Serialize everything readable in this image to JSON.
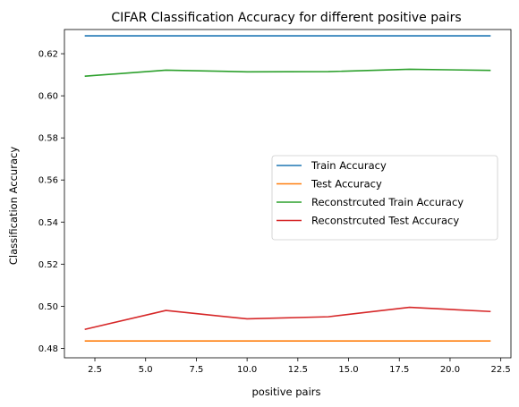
{
  "chart_data": {
    "type": "line",
    "title": "CIFAR Classification Accuracy for different positive pairs",
    "xlabel": "positive pairs",
    "ylabel": "Classification Accuracy",
    "xlim": [
      1.0,
      23.0
    ],
    "ylim": [
      0.4755,
      0.6315
    ],
    "xticks": [
      2.5,
      5.0,
      7.5,
      10.0,
      12.5,
      15.0,
      17.5,
      20.0,
      22.5
    ],
    "xtick_labels": [
      "2.5",
      "5.0",
      "7.5",
      "10.0",
      "12.5",
      "15.0",
      "17.5",
      "20.0",
      "22.5"
    ],
    "yticks": [
      0.48,
      0.5,
      0.52,
      0.54,
      0.56,
      0.58,
      0.6,
      0.62
    ],
    "ytick_labels": [
      "0.48",
      "0.50",
      "0.52",
      "0.54",
      "0.56",
      "0.58",
      "0.60",
      "0.62"
    ],
    "grid": false,
    "legend_position": "center-right",
    "x": [
      2,
      6,
      10,
      14,
      18,
      22
    ],
    "series": [
      {
        "name": "Train Accuracy",
        "color": "#1f77b4",
        "values": [
          0.6285,
          0.6285,
          0.6285,
          0.6285,
          0.6285,
          0.6285
        ]
      },
      {
        "name": "Test Accuracy",
        "color": "#ff7f0e",
        "values": [
          0.4835,
          0.4835,
          0.4835,
          0.4835,
          0.4835,
          0.4835
        ]
      },
      {
        "name": "Reconstrcuted Train Accuracy",
        "color": "#2ca02c",
        "values": [
          0.6093,
          0.6122,
          0.6114,
          0.6115,
          0.6126,
          0.6121
        ]
      },
      {
        "name": "Reconstrcuted Test Accuracy",
        "color": "#d62728",
        "values": [
          0.489,
          0.498,
          0.494,
          0.495,
          0.4995,
          0.4975
        ]
      }
    ]
  }
}
